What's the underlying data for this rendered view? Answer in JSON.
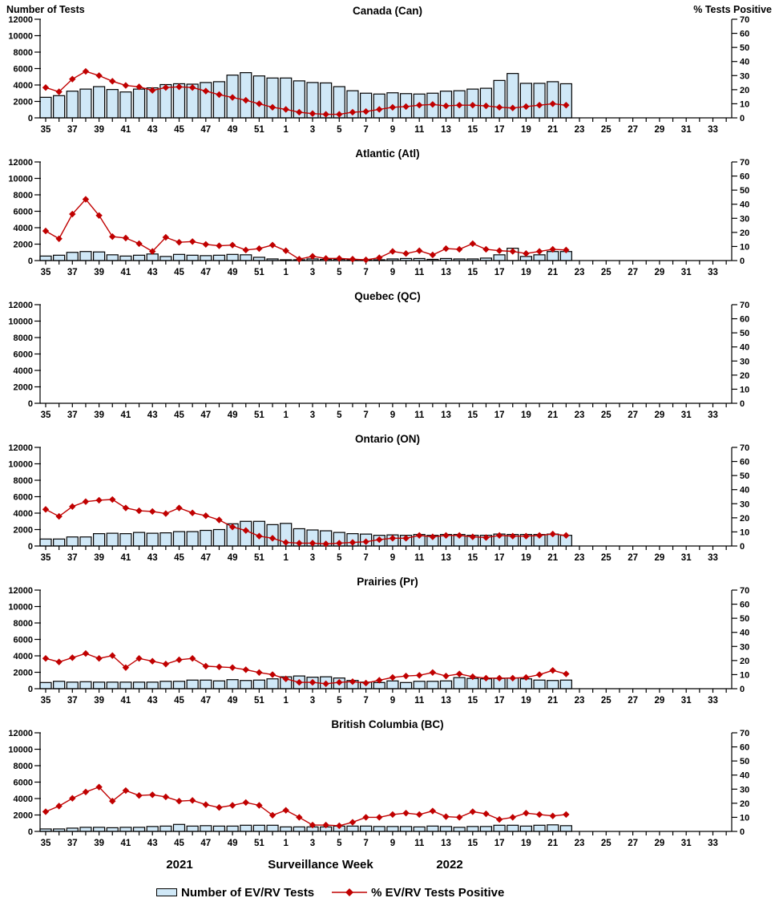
{
  "figure": {
    "left_axis_title": "Number of Tests",
    "right_axis_title": "%  Tests Positive",
    "x_axis_title": "Surveillance Week",
    "year_left": "2021",
    "year_right": "2022",
    "legend": [
      {
        "label": "Number of EV/RV Tests",
        "marker": "light-blue-bar",
        "color": "#D0E8F7"
      },
      {
        "label": "% EV/RV Tests Positive",
        "marker": "red-diamond-line",
        "color": "#C00000"
      }
    ],
    "colors": {
      "bar_fill": "#D0E8F7",
      "bar_outline": "#000000",
      "line": "#C00000",
      "white_bar": "#FFFFFF"
    },
    "axis_weeks": [
      35,
      36,
      37,
      38,
      39,
      40,
      41,
      42,
      43,
      44,
      45,
      46,
      47,
      48,
      49,
      50,
      51,
      52,
      1,
      2,
      3,
      4,
      5,
      6,
      7,
      8,
      9,
      10,
      11,
      12,
      13,
      14,
      15,
      16,
      17,
      18,
      19,
      20,
      21,
      22,
      23,
      24,
      25,
      26,
      27,
      28,
      29,
      30,
      31,
      32,
      33,
      34
    ],
    "left_axis_ticks": [
      0,
      2000,
      4000,
      6000,
      8000,
      10000,
      12000
    ],
    "right_axis_ticks": [
      0,
      10,
      20,
      30,
      40,
      50,
      60,
      70
    ]
  },
  "chart_data": [
    {
      "type": "bar+line",
      "title": "Canada (Can)",
      "left_ylim": [
        0,
        12000
      ],
      "right_ylim": [
        0,
        70
      ],
      "x_weeks": [
        35,
        36,
        37,
        38,
        39,
        40,
        41,
        42,
        43,
        44,
        45,
        46,
        47,
        48,
        49,
        50,
        51,
        52,
        1,
        2,
        3,
        4,
        5,
        6,
        7,
        8,
        9,
        10,
        11,
        12,
        13,
        14,
        15,
        16,
        17,
        18,
        19,
        20,
        21,
        22
      ],
      "bars": {
        "name": "Number of EV/RV Tests",
        "values": [
          2500,
          2700,
          3250,
          3500,
          3800,
          3450,
          3150,
          3500,
          3650,
          4050,
          4150,
          4100,
          4300,
          4400,
          5200,
          5500,
          5100,
          4850,
          4850,
          4500,
          4300,
          4250,
          3800,
          3300,
          3000,
          2900,
          3050,
          2950,
          2900,
          3000,
          3250,
          3300,
          3500,
          3600,
          4550,
          5400,
          4200,
          4200,
          4400,
          4150
        ]
      },
      "line": {
        "name": "% EV/RV Tests Positive",
        "values": [
          21.5,
          18.5,
          27.5,
          33,
          30,
          26,
          23,
          22,
          19.5,
          21.5,
          22,
          21.5,
          19,
          16.5,
          14.5,
          12.5,
          10,
          7.5,
          6,
          4,
          3,
          2.5,
          2.5,
          4,
          4.5,
          6,
          7.5,
          8,
          9,
          9.5,
          8.5,
          9,
          9,
          8.5,
          7.5,
          7,
          8,
          9,
          10,
          9
        ]
      },
      "white_bar_weeks": []
    },
    {
      "type": "bar+line",
      "title": "Atlantic (Atl)",
      "left_ylim": [
        0,
        12000
      ],
      "right_ylim": [
        0,
        70
      ],
      "x_weeks": [
        35,
        36,
        37,
        38,
        39,
        40,
        41,
        42,
        43,
        44,
        45,
        46,
        47,
        48,
        49,
        50,
        51,
        52,
        1,
        2,
        3,
        4,
        5,
        6,
        7,
        8,
        9,
        10,
        11,
        12,
        13,
        14,
        15,
        16,
        17,
        18,
        19,
        20,
        21,
        22
      ],
      "bars": {
        "name": "Number of EV/RV Tests",
        "values": [
          550,
          650,
          1000,
          1100,
          1050,
          700,
          550,
          650,
          800,
          500,
          750,
          650,
          600,
          650,
          750,
          700,
          400,
          200,
          100,
          100,
          200,
          150,
          150,
          100,
          100,
          100,
          200,
          250,
          250,
          150,
          250,
          200,
          200,
          300,
          700,
          1500,
          500,
          700,
          1100,
          1100
        ]
      },
      "line": {
        "name": "% EV/RV Tests Positive",
        "values": [
          21,
          15.5,
          33,
          43.5,
          32,
          17,
          16,
          12,
          6.5,
          16.5,
          13,
          13.5,
          11.5,
          10.5,
          11,
          7.5,
          8.5,
          11,
          7,
          1,
          3,
          1.5,
          1.5,
          1,
          0.5,
          2,
          6.5,
          5,
          7,
          4,
          8.5,
          8,
          12,
          8,
          7,
          6.5,
          5,
          6.5,
          8,
          7.5
        ]
      },
      "white_bar_weeks": [
        18
      ]
    },
    {
      "type": "bar+line",
      "title": "Quebec (QC)",
      "left_ylim": [
        0,
        12000
      ],
      "right_ylim": [
        0,
        70
      ],
      "x_weeks": [],
      "bars": {
        "name": "Number of EV/RV Tests",
        "values": []
      },
      "line": {
        "name": "% EV/RV Tests Positive",
        "values": []
      },
      "white_bar_weeks": []
    },
    {
      "type": "bar+line",
      "title": "Ontario (ON)",
      "left_ylim": [
        0,
        12000
      ],
      "right_ylim": [
        0,
        70
      ],
      "x_weeks": [
        35,
        36,
        37,
        38,
        39,
        40,
        41,
        42,
        43,
        44,
        45,
        46,
        47,
        48,
        49,
        50,
        51,
        52,
        1,
        2,
        3,
        4,
        5,
        6,
        7,
        8,
        9,
        10,
        11,
        12,
        13,
        14,
        15,
        16,
        17,
        18,
        19,
        20,
        21,
        22
      ],
      "bars": {
        "name": "Number of EV/RV Tests",
        "values": [
          850,
          850,
          1100,
          1100,
          1500,
          1550,
          1500,
          1650,
          1550,
          1600,
          1750,
          1750,
          1900,
          2000,
          2700,
          3000,
          3000,
          2600,
          2750,
          2100,
          1950,
          1850,
          1650,
          1500,
          1450,
          1300,
          1350,
          1300,
          1400,
          1300,
          1400,
          1400,
          1300,
          1300,
          1450,
          1400,
          1400,
          1400,
          1450,
          1300
        ]
      },
      "line": {
        "name": "% EV/RV Tests Positive",
        "values": [
          26,
          21,
          28,
          31.5,
          32.5,
          33,
          27,
          25,
          24.5,
          23,
          27,
          23.5,
          21.5,
          18.5,
          13.5,
          11,
          7,
          5.5,
          2.5,
          2,
          2,
          1.5,
          2,
          2.5,
          3,
          4.5,
          5.5,
          5.5,
          7.5,
          6.5,
          7.5,
          7.5,
          6.5,
          6,
          7.5,
          7,
          7,
          7.5,
          8.5,
          7.5
        ]
      },
      "white_bar_weeks": []
    },
    {
      "type": "bar+line",
      "title": "Prairies (Pr)",
      "left_ylim": [
        0,
        12000
      ],
      "right_ylim": [
        0,
        70
      ],
      "x_weeks": [
        35,
        36,
        37,
        38,
        39,
        40,
        41,
        42,
        43,
        44,
        45,
        46,
        47,
        48,
        49,
        50,
        51,
        52,
        1,
        2,
        3,
        4,
        5,
        6,
        7,
        8,
        9,
        10,
        11,
        12,
        13,
        14,
        15,
        16,
        17,
        18,
        19,
        20,
        21,
        22
      ],
      "bars": {
        "name": "Number of EV/RV Tests",
        "values": [
          750,
          900,
          800,
          850,
          800,
          800,
          800,
          800,
          800,
          900,
          900,
          1050,
          1050,
          950,
          1100,
          1000,
          1050,
          1200,
          1450,
          1550,
          1400,
          1450,
          1300,
          1000,
          800,
          750,
          950,
          750,
          900,
          900,
          950,
          1350,
          1250,
          1200,
          1250,
          1300,
          1200,
          1050,
          1000,
          1050
        ]
      },
      "line": {
        "name": "% EV/RV Tests Positive",
        "values": [
          21.5,
          19,
          22,
          25,
          21.5,
          23.5,
          15,
          21.5,
          19.5,
          17.5,
          20.5,
          21.5,
          16,
          15.5,
          15,
          13.5,
          11.5,
          10,
          7,
          4.5,
          4.5,
          3.5,
          4.5,
          5,
          4,
          6,
          8,
          9,
          9.5,
          11.5,
          9,
          10.5,
          8.5,
          7.5,
          7.5,
          7.5,
          8,
          10,
          13,
          10.5
        ]
      },
      "white_bar_weeks": []
    },
    {
      "type": "bar+line",
      "title": "British Columbia (BC)",
      "left_ylim": [
        0,
        12000
      ],
      "right_ylim": [
        0,
        70
      ],
      "x_weeks": [
        35,
        36,
        37,
        38,
        39,
        40,
        41,
        42,
        43,
        44,
        45,
        46,
        47,
        48,
        49,
        50,
        51,
        52,
        1,
        2,
        3,
        4,
        5,
        6,
        7,
        8,
        9,
        10,
        11,
        12,
        13,
        14,
        15,
        16,
        17,
        18,
        19,
        20,
        21,
        22
      ],
      "bars": {
        "name": "Number of EV/RV Tests",
        "values": [
          300,
          300,
          400,
          500,
          500,
          450,
          500,
          500,
          600,
          650,
          850,
          650,
          700,
          650,
          650,
          750,
          750,
          750,
          550,
          550,
          550,
          550,
          650,
          650,
          650,
          600,
          600,
          600,
          550,
          650,
          600,
          500,
          600,
          600,
          750,
          750,
          650,
          750,
          800,
          700
        ]
      },
      "line": {
        "name": "% EV/RV Tests Positive",
        "values": [
          14,
          18,
          23.5,
          28,
          31.5,
          21.5,
          29,
          25.5,
          26,
          24.5,
          21.5,
          22,
          19,
          17,
          18.5,
          20.5,
          18.5,
          11.5,
          15,
          10,
          4.5,
          4.5,
          4,
          6.5,
          10,
          10,
          12,
          13,
          12,
          14.5,
          10.5,
          10,
          14,
          12.5,
          8.5,
          10,
          13,
          12,
          11,
          12
        ]
      },
      "white_bar_weeks": []
    }
  ]
}
